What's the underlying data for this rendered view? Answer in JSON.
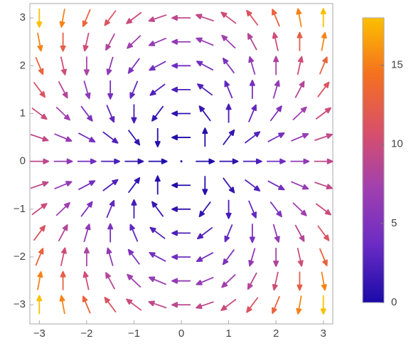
{
  "chart_data": {
    "type": "vector",
    "x": [
      -3,
      -2.5,
      -2,
      -1.5,
      -1,
      -0.5,
      0,
      0.5,
      1,
      1.5,
      2,
      2.5,
      3
    ],
    "y": [
      -3,
      -2.5,
      -2,
      -1.5,
      -1,
      -0.5,
      0,
      0.5,
      1,
      1.5,
      2,
      2.5,
      3
    ],
    "u": [
      [
        0,
        -2.75,
        -5,
        -6.75,
        -8,
        -8.75,
        -9,
        -8.75,
        -8,
        -6.75,
        -5,
        -2.75,
        0
      ],
      [
        2.75,
        0,
        -2.25,
        -4,
        -5.25,
        -6,
        -6.25,
        -6,
        -5.25,
        -4,
        -2.25,
        0,
        2.75
      ],
      [
        5,
        2.25,
        0,
        -1.75,
        -3,
        -3.75,
        -4,
        -3.75,
        -3,
        -1.75,
        0,
        2.25,
        5
      ],
      [
        6.75,
        4,
        1.75,
        0,
        -1.25,
        -2,
        -2.25,
        -2,
        -1.25,
        0,
        1.75,
        4,
        6.75
      ],
      [
        8,
        5.25,
        3,
        1.25,
        0,
        -0.75,
        -1,
        -0.75,
        0,
        1.25,
        3,
        5.25,
        8
      ],
      [
        8.75,
        6,
        3.75,
        2,
        0.75,
        0,
        -0.25,
        0,
        0.75,
        2,
        3.75,
        6,
        8.75
      ],
      [
        9,
        6.25,
        4,
        2.25,
        1,
        0.25,
        0,
        0.25,
        1,
        2.25,
        4,
        6.25,
        9
      ],
      [
        8.75,
        6,
        3.75,
        2,
        0.75,
        0,
        -0.25,
        0,
        0.75,
        2,
        3.75,
        6,
        8.75
      ],
      [
        8,
        5.25,
        3,
        1.25,
        0,
        -0.75,
        -1,
        -0.75,
        0,
        1.25,
        3,
        5.25,
        8
      ],
      [
        6.75,
        4,
        1.75,
        0,
        -1.25,
        -2,
        -2.25,
        -2,
        -1.25,
        0,
        1.75,
        4,
        6.75
      ],
      [
        5,
        2.25,
        0,
        -1.75,
        -3,
        -3.75,
        -4,
        -3.75,
        -3,
        -1.75,
        0,
        2.25,
        5
      ],
      [
        2.75,
        0,
        -2.25,
        -4,
        -5.25,
        -6,
        -6.25,
        -6,
        -5.25,
        -4,
        -2.25,
        0,
        2.75
      ],
      [
        0,
        -2.75,
        -5,
        -6.75,
        -8,
        -8.75,
        -9,
        -8.75,
        -8,
        -6.75,
        -5,
        -2.75,
        0
      ]
    ],
    "v": [
      [
        18,
        15,
        12,
        9,
        6,
        3,
        0,
        -3,
        -6,
        -9,
        -12,
        -15,
        -18
      ],
      [
        15,
        12.5,
        10,
        7.5,
        5,
        2.5,
        0,
        -2.5,
        -5,
        -7.5,
        -10,
        -12.5,
        -15
      ],
      [
        12,
        10,
        8,
        6,
        4,
        2,
        0,
        -2,
        -4,
        -6,
        -8,
        -10,
        -12
      ],
      [
        9,
        7.5,
        6,
        4.5,
        3,
        1.5,
        0,
        -1.5,
        -3,
        -4.5,
        -6,
        -7.5,
        -9
      ],
      [
        6,
        5,
        4,
        3,
        2,
        1,
        0,
        -1,
        -2,
        -3,
        -4,
        -5,
        -6
      ],
      [
        3,
        2.5,
        2,
        1.5,
        1,
        0.5,
        0,
        -0.5,
        -1,
        -1.5,
        -2,
        -2.5,
        -3
      ],
      [
        0,
        0,
        0,
        0,
        0,
        0,
        0,
        0,
        0,
        0,
        0,
        0,
        0
      ],
      [
        -3,
        -2.5,
        -2,
        -1.5,
        -1,
        -0.5,
        0,
        0.5,
        1,
        1.5,
        2,
        2.5,
        3
      ],
      [
        -6,
        -5,
        -4,
        -3,
        -2,
        -1,
        0,
        1,
        2,
        3,
        4,
        5,
        6
      ],
      [
        -9,
        -7.5,
        -6,
        -4.5,
        -3,
        -1.5,
        0,
        1.5,
        3,
        4.5,
        6,
        7.5,
        9
      ],
      [
        -12,
        -10,
        -8,
        -6,
        -4,
        -2,
        0,
        2,
        4,
        6,
        8,
        10,
        12
      ],
      [
        -15,
        -12.5,
        -10,
        -7.5,
        -5,
        -2.5,
        0,
        2.5,
        5,
        7.5,
        10,
        12.5,
        15
      ],
      [
        -18,
        -15,
        -12,
        -9,
        -6,
        -3,
        0,
        3,
        6,
        9,
        12,
        15,
        18
      ]
    ],
    "xlim": [
      -3.2,
      3.2
    ],
    "ylim": [
      -3.4,
      3.3
    ],
    "xticks": [
      {
        "value": -3,
        "label": "−3"
      },
      {
        "value": -2,
        "label": "−2"
      },
      {
        "value": -1,
        "label": "−1"
      },
      0,
      1,
      2,
      3
    ],
    "yticks": [
      {
        "value": -3,
        "label": "−3"
      },
      {
        "value": -2,
        "label": "−2"
      },
      {
        "value": -1,
        "label": "−1"
      },
      0,
      1,
      2,
      3
    ],
    "clim": [
      0,
      18
    ],
    "cticks": [
      0,
      5,
      10,
      15
    ],
    "colormap": [
      "#1a0aa8",
      "#6a2bc4",
      "#a040b0",
      "#d8506a",
      "#f47020",
      "#fcbf00"
    ]
  }
}
